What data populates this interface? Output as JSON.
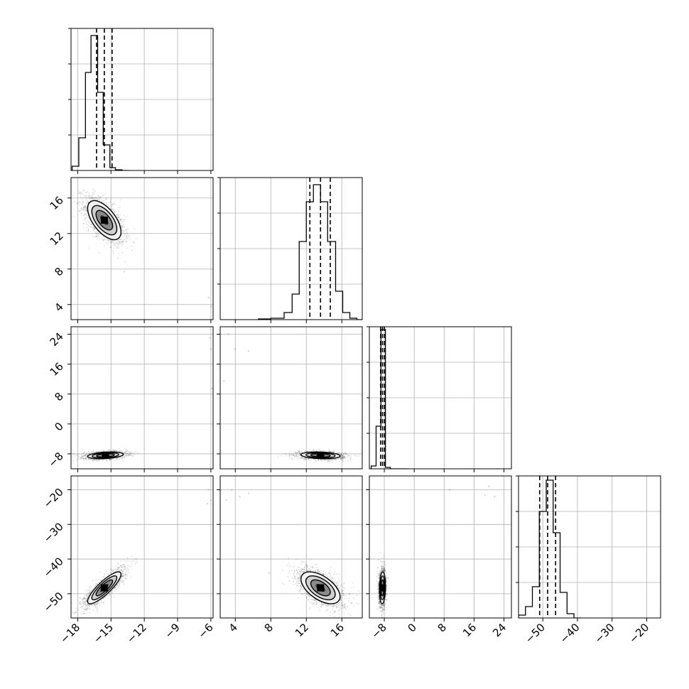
{
  "chart_data": {
    "type": "corner",
    "grid": true,
    "parameters": [
      {
        "range": [
          -18.6,
          -5.8
        ],
        "ticks": [
          -18,
          -15,
          -12,
          -9,
          -6
        ],
        "tick_labels": [
          "−18",
          "−15",
          "−12",
          "−9",
          "−6"
        ],
        "hist_bins": {
          "edges": [
            -18.5,
            -17.9,
            -17.3,
            -16.8,
            -16.2,
            -15.7,
            -15.1,
            -14.6,
            -14.0,
            -13.4
          ],
          "values": [
            0.03,
            0.23,
            0.69,
            0.95,
            0.55,
            0.18,
            0.02,
            0.005,
            0.0
          ]
        },
        "quantiles": [
          -16.3,
          -15.6,
          -14.9
        ]
      },
      {
        "range": [
          2.3,
          18.3
        ],
        "ticks": [
          4,
          8,
          12,
          16
        ],
        "tick_labels": [
          "4",
          "8",
          "12",
          "16"
        ],
        "hist_bins": {
          "edges": [
            6.6,
            8.0,
            9.5,
            10.4,
            11.2,
            12.0,
            12.8,
            13.6,
            14.4,
            15.3,
            16.1,
            16.9,
            17.7,
            18.3
          ],
          "values": [
            0.005,
            0.01,
            0.05,
            0.18,
            0.55,
            0.83,
            0.95,
            0.83,
            0.55,
            0.2,
            0.05,
            0.01,
            0.0
          ]
        },
        "quantiles": [
          12.4,
          13.6,
          14.7
        ]
      },
      {
        "range": [
          -12.0,
          26.0
        ],
        "ticks": [
          -8,
          0,
          8,
          16,
          24
        ],
        "tick_labels": [
          "−8",
          "0",
          "8",
          "16",
          "24"
        ],
        "hist_bins": {
          "edges": [
            -11.5,
            -10.2,
            -8.9,
            -7.7,
            -6.4,
            -1.8
          ],
          "values": [
            0.02,
            0.3,
            0.98,
            0.01,
            0.0
          ]
        },
        "quantiles": [
          -9.0,
          -8.5,
          -8.0
        ]
      },
      {
        "range": [
          -57.0,
          -16.0
        ],
        "ticks": [
          -50,
          -40,
          -30,
          -20
        ],
        "tick_labels": [
          "−50",
          "−40",
          "−30",
          "−20"
        ],
        "hist_bins": {
          "edges": [
            -57.0,
            -55.0,
            -53.0,
            -51.0,
            -49.0,
            -47.0,
            -45.0,
            -43.0,
            -41.0,
            -39.0
          ],
          "values": [
            0.02,
            0.08,
            0.22,
            0.75,
            0.97,
            0.6,
            0.18,
            0.03,
            0.0
          ]
        },
        "quantiles": [
          -50.9,
          -48.6,
          -46.3
        ]
      }
    ],
    "pairs": [
      {
        "x": 0,
        "y": 1,
        "mean": [
          -15.6,
          13.5
        ],
        "sd": [
          0.75,
          1.1
        ],
        "corr": -0.6,
        "n": 1800,
        "outliers": [
          [
            -6.2,
            4.8
          ],
          [
            -6.0,
            3.8
          ],
          [
            -13.8,
            7.7
          ]
        ]
      },
      {
        "x": 0,
        "y": 2,
        "mean": [
          -15.5,
          -8.4
        ],
        "sd": [
          0.8,
          0.45
        ],
        "corr": 0.3,
        "n": 1400,
        "outliers": [
          [
            -6.1,
            23.0
          ],
          [
            -6.0,
            20.0
          ],
          [
            -5.9,
            9.5
          ]
        ]
      },
      {
        "x": 1,
        "y": 2,
        "mean": [
          13.6,
          -8.4
        ],
        "sd": [
          1.1,
          0.45
        ],
        "corr": -0.2,
        "n": 1400,
        "outliers": [
          [
            3.2,
            24.0
          ],
          [
            4.0,
            20.0
          ],
          [
            5.5,
            19.5
          ],
          [
            2.7,
            11.5
          ]
        ]
      },
      {
        "x": 0,
        "y": 3,
        "mean": [
          -15.6,
          -48.3
        ],
        "sd": [
          0.75,
          2.3
        ],
        "corr": 0.85,
        "n": 1800,
        "outliers": [
          [
            -6.2,
            -20.0
          ],
          [
            -6.0,
            -23.0
          ],
          [
            -6.3,
            -24.0
          ]
        ]
      },
      {
        "x": 1,
        "y": 3,
        "mean": [
          13.6,
          -48.3
        ],
        "sd": [
          1.1,
          2.3
        ],
        "corr": -0.55,
        "n": 1800,
        "outliers": [
          [
            3.6,
            -20.0
          ],
          [
            4.5,
            -22.0
          ],
          [
            5.5,
            -21.0
          ],
          [
            3.0,
            -23.0
          ],
          [
            7.8,
            -44.0
          ]
        ]
      },
      {
        "x": 2,
        "y": 3,
        "mean": [
          -8.5,
          -48.3
        ],
        "sd": [
          0.4,
          2.3
        ],
        "corr": 0.1,
        "n": 1400,
        "outliers": [
          [
            9.5,
            -20.0
          ],
          [
            20.0,
            -19.0
          ],
          [
            21.5,
            -22.0
          ],
          [
            19.0,
            -21.5
          ]
        ]
      }
    ]
  }
}
